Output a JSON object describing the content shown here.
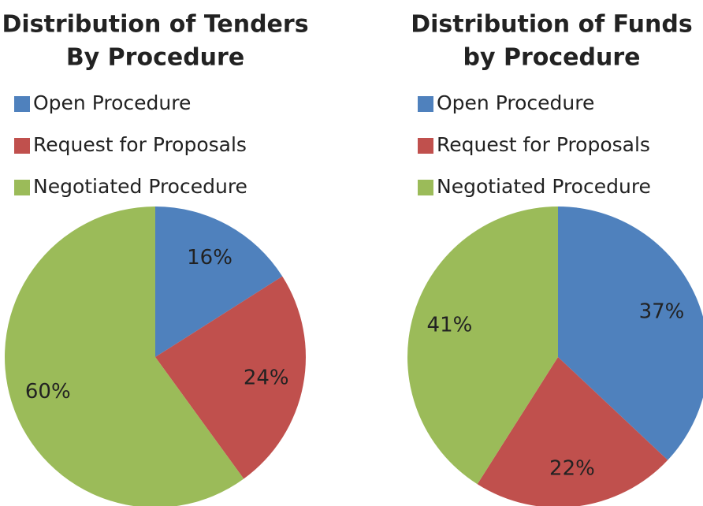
{
  "chart_data": [
    {
      "type": "pie",
      "title": [
        "Distribution of Tenders",
        "By Procedure"
      ],
      "categories": [
        "Open Procedure",
        "Request for Proposals",
        "Negotiated Procedure"
      ],
      "values": [
        16,
        24,
        60
      ],
      "value_labels": [
        "16%",
        "24%",
        "60%"
      ],
      "colors": [
        "#4f81bd",
        "#c0504d",
        "#9bbb59"
      ]
    },
    {
      "type": "pie",
      "title": [
        "Distribution of Funds",
        "by Procedure"
      ],
      "categories": [
        "Open Procedure",
        "Request for Proposals",
        "Negotiated Procedure"
      ],
      "values": [
        37,
        22,
        41
      ],
      "value_labels": [
        "37%",
        "22%",
        "41%"
      ],
      "colors": [
        "#4f81bd",
        "#c0504d",
        "#9bbb59"
      ]
    }
  ]
}
